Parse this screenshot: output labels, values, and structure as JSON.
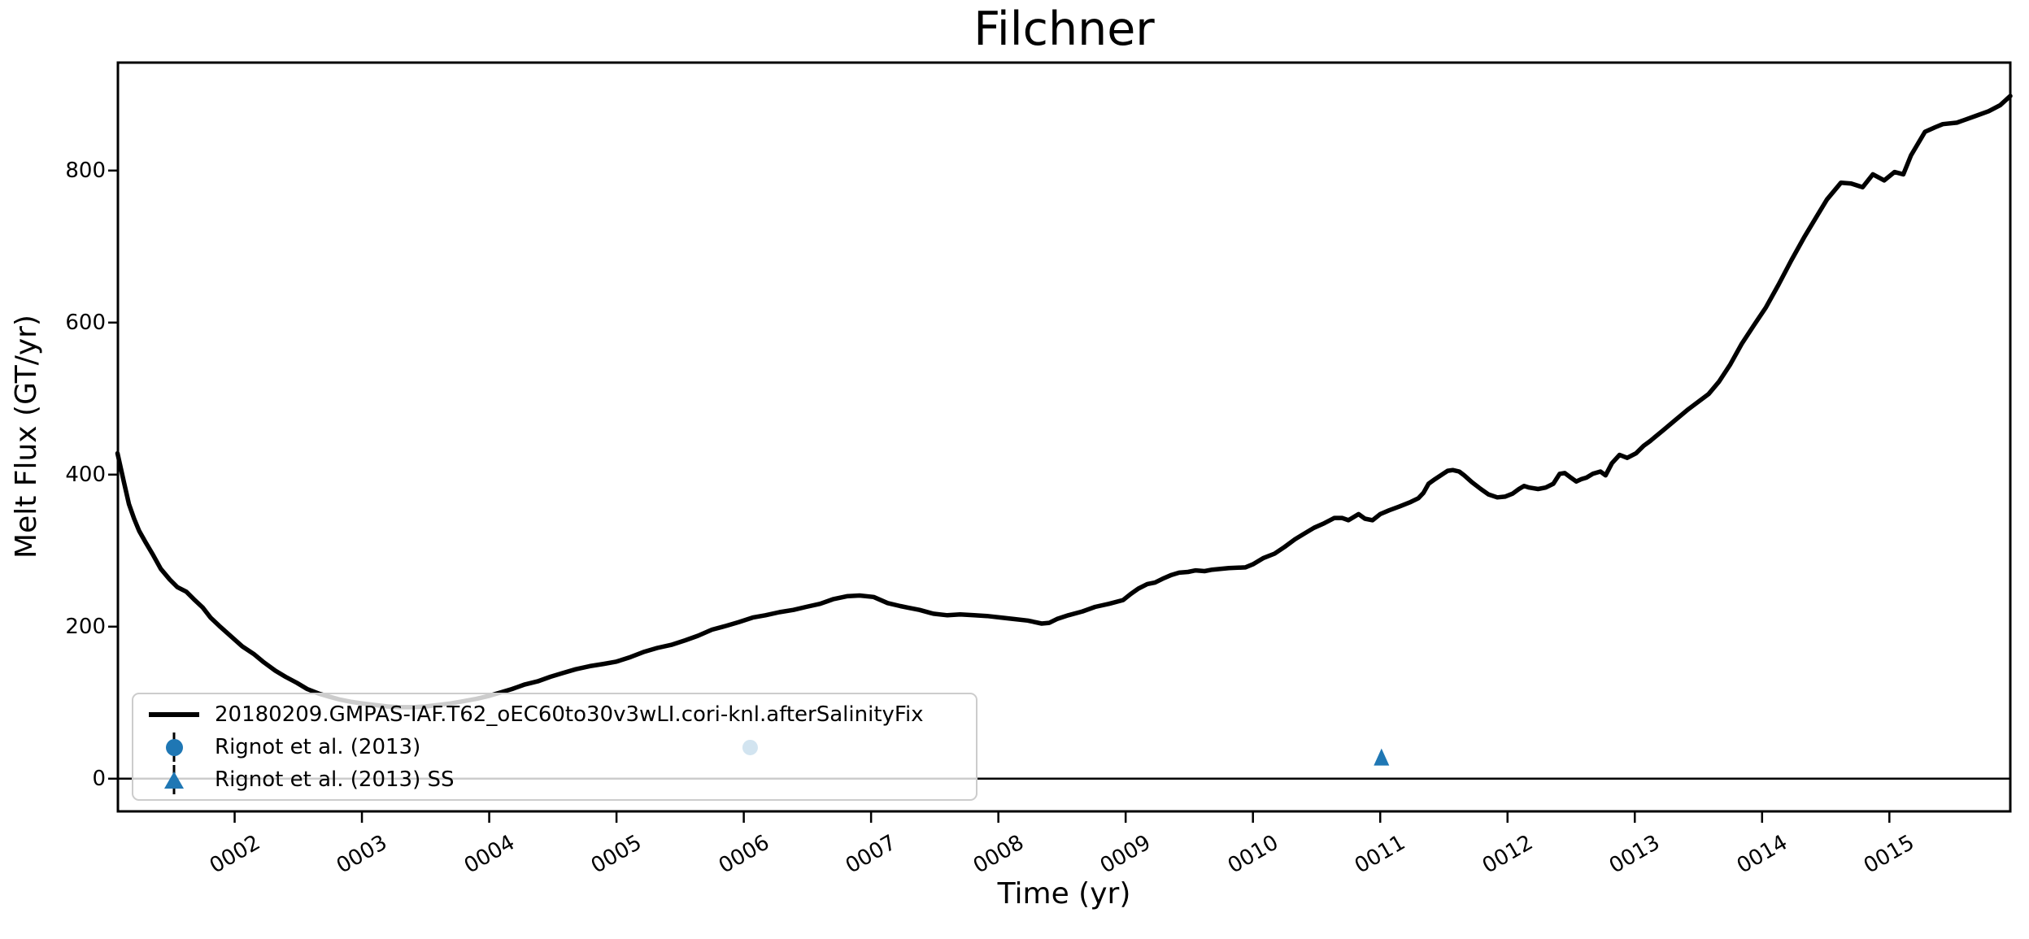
{
  "figure": {
    "title": "Filchner",
    "xlabel": "Time (yr)",
    "ylabel": "Melt Flux (GT/yr)"
  },
  "legend": {
    "entries": [
      {
        "label": "20180209.GMPAS-IAF.T62_oEC60to30v3wLI.cori-knl.afterSalinityFix",
        "marker": "line",
        "color": "#000000"
      },
      {
        "label": "Rignot et al. (2013)",
        "marker": "circle-errorbar",
        "color": "#1f77b4"
      },
      {
        "label": "Rignot et al. (2013) SS",
        "marker": "triangle-errorbar",
        "color": "#1f77b4"
      }
    ]
  },
  "chart_data": {
    "type": "line",
    "title": "Filchner",
    "xlabel": "Time (yr)",
    "ylabel": "Melt Flux (GT/yr)",
    "xlim": [
      1.083,
      15.95
    ],
    "ylim": [
      -43,
      942
    ],
    "grid": false,
    "zero_line": 0,
    "legend_position": "lower left",
    "xticks": {
      "values": [
        2,
        3,
        4,
        5,
        6,
        7,
        8,
        9,
        10,
        11,
        12,
        13,
        14,
        15
      ],
      "labels": [
        "0002",
        "0003",
        "0004",
        "0005",
        "0006",
        "0007",
        "0008",
        "0009",
        "0010",
        "0011",
        "0012",
        "0013",
        "0014",
        "0015"
      ]
    },
    "yticks": {
      "values": [
        0,
        200,
        400,
        600,
        800
      ],
      "labels": [
        "0",
        "200",
        "400",
        "600",
        "800"
      ]
    },
    "series": [
      {
        "name": "20180209.GMPAS-IAF.T62_oEC60to30v3wLI.cori-knl.afterSalinityFix",
        "type": "line",
        "color": "#000000",
        "linewidth": 5.5,
        "points": [
          [
            1.08,
            428
          ],
          [
            1.13,
            390
          ],
          [
            1.17,
            361
          ],
          [
            1.21,
            342
          ],
          [
            1.25,
            326
          ],
          [
            1.3,
            311
          ],
          [
            1.36,
            294
          ],
          [
            1.42,
            276
          ],
          [
            1.49,
            262
          ],
          [
            1.55,
            252
          ],
          [
            1.62,
            246
          ],
          [
            1.68,
            236
          ],
          [
            1.75,
            225
          ],
          [
            1.81,
            212
          ],
          [
            1.88,
            201
          ],
          [
            1.94,
            192
          ],
          [
            2.0,
            183
          ],
          [
            2.06,
            174
          ],
          [
            2.15,
            164
          ],
          [
            2.23,
            153
          ],
          [
            2.32,
            142
          ],
          [
            2.4,
            134
          ],
          [
            2.49,
            126
          ],
          [
            2.57,
            118
          ],
          [
            2.66,
            112
          ],
          [
            2.74,
            108
          ],
          [
            2.83,
            104
          ],
          [
            2.92,
            101
          ],
          [
            3.0,
            99
          ],
          [
            3.1,
            97
          ],
          [
            3.2,
            95
          ],
          [
            3.3,
            94
          ],
          [
            3.4,
            94
          ],
          [
            3.5,
            95
          ],
          [
            3.6,
            97
          ],
          [
            3.7,
            99
          ],
          [
            3.8,
            102
          ],
          [
            3.9,
            105
          ],
          [
            4.0,
            109
          ],
          [
            4.1,
            114
          ],
          [
            4.18,
            118
          ],
          [
            4.28,
            124
          ],
          [
            4.38,
            128
          ],
          [
            4.48,
            134
          ],
          [
            4.58,
            139
          ],
          [
            4.68,
            144
          ],
          [
            4.79,
            148
          ],
          [
            4.9,
            151
          ],
          [
            5.0,
            154
          ],
          [
            5.11,
            160
          ],
          [
            5.22,
            167
          ],
          [
            5.32,
            172
          ],
          [
            5.43,
            176
          ],
          [
            5.54,
            182
          ],
          [
            5.64,
            188
          ],
          [
            5.75,
            196
          ],
          [
            5.86,
            201
          ],
          [
            5.96,
            206
          ],
          [
            6.07,
            212
          ],
          [
            6.17,
            215
          ],
          [
            6.28,
            219
          ],
          [
            6.39,
            222
          ],
          [
            6.49,
            226
          ],
          [
            6.6,
            230
          ],
          [
            6.7,
            236
          ],
          [
            6.81,
            240
          ],
          [
            6.91,
            241
          ],
          [
            7.02,
            239
          ],
          [
            7.13,
            231
          ],
          [
            7.23,
            227
          ],
          [
            7.29,
            225
          ],
          [
            7.38,
            222
          ],
          [
            7.49,
            217
          ],
          [
            7.6,
            215
          ],
          [
            7.7,
            216
          ],
          [
            7.81,
            215
          ],
          [
            7.91,
            214
          ],
          [
            8.02,
            212
          ],
          [
            8.12,
            210
          ],
          [
            8.23,
            208
          ],
          [
            8.34,
            204
          ],
          [
            8.4,
            205
          ],
          [
            8.46,
            210
          ],
          [
            8.55,
            215
          ],
          [
            8.66,
            220
          ],
          [
            8.76,
            226
          ],
          [
            8.87,
            230
          ],
          [
            8.98,
            235
          ],
          [
            9.04,
            243
          ],
          [
            9.1,
            250
          ],
          [
            9.17,
            256
          ],
          [
            9.23,
            258
          ],
          [
            9.29,
            263
          ],
          [
            9.36,
            268
          ],
          [
            9.42,
            271
          ],
          [
            9.49,
            272
          ],
          [
            9.55,
            274
          ],
          [
            9.62,
            273
          ],
          [
            9.68,
            275
          ],
          [
            9.81,
            277
          ],
          [
            9.94,
            278
          ],
          [
            10.0,
            282
          ],
          [
            10.08,
            290
          ],
          [
            10.17,
            296
          ],
          [
            10.25,
            305
          ],
          [
            10.33,
            315
          ],
          [
            10.4,
            322
          ],
          [
            10.48,
            330
          ],
          [
            10.56,
            336
          ],
          [
            10.64,
            343
          ],
          [
            10.7,
            343
          ],
          [
            10.75,
            340
          ],
          [
            10.83,
            348
          ],
          [
            10.88,
            342
          ],
          [
            10.94,
            340
          ],
          [
            11.0,
            348
          ],
          [
            11.07,
            353
          ],
          [
            11.15,
            358
          ],
          [
            11.24,
            364
          ],
          [
            11.3,
            369
          ],
          [
            11.34,
            376
          ],
          [
            11.38,
            388
          ],
          [
            11.43,
            394
          ],
          [
            11.53,
            405
          ],
          [
            11.57,
            406
          ],
          [
            11.62,
            404
          ],
          [
            11.66,
            399
          ],
          [
            11.72,
            390
          ],
          [
            11.79,
            381
          ],
          [
            11.85,
            374
          ],
          [
            11.92,
            370
          ],
          [
            11.98,
            371
          ],
          [
            12.04,
            375
          ],
          [
            12.09,
            381
          ],
          [
            12.13,
            385
          ],
          [
            12.17,
            383
          ],
          [
            12.24,
            381
          ],
          [
            12.3,
            383
          ],
          [
            12.36,
            388
          ],
          [
            12.41,
            401
          ],
          [
            12.45,
            402
          ],
          [
            12.49,
            397
          ],
          [
            12.54,
            391
          ],
          [
            12.58,
            394
          ],
          [
            12.62,
            396
          ],
          [
            12.67,
            401
          ],
          [
            12.73,
            404
          ],
          [
            12.77,
            399
          ],
          [
            12.82,
            415
          ],
          [
            12.88,
            426
          ],
          [
            12.94,
            422
          ],
          [
            13.01,
            428
          ],
          [
            13.07,
            438
          ],
          [
            13.12,
            444
          ],
          [
            13.22,
            458
          ],
          [
            13.32,
            472
          ],
          [
            13.42,
            486
          ],
          [
            13.58,
            506
          ],
          [
            13.66,
            522
          ],
          [
            13.75,
            545
          ],
          [
            13.84,
            572
          ],
          [
            13.93,
            595
          ],
          [
            14.03,
            620
          ],
          [
            14.13,
            650
          ],
          [
            14.23,
            682
          ],
          [
            14.33,
            712
          ],
          [
            14.43,
            740
          ],
          [
            14.51,
            762
          ],
          [
            14.62,
            784
          ],
          [
            14.7,
            783
          ],
          [
            14.79,
            778
          ],
          [
            14.87,
            795
          ],
          [
            14.96,
            787
          ],
          [
            15.04,
            798
          ],
          [
            15.11,
            795
          ],
          [
            15.17,
            820
          ],
          [
            15.28,
            851
          ],
          [
            15.36,
            857
          ],
          [
            15.42,
            861
          ],
          [
            15.53,
            863
          ],
          [
            15.68,
            872
          ],
          [
            15.78,
            878
          ],
          [
            15.87,
            886
          ],
          [
            15.95,
            898
          ]
        ]
      },
      {
        "name": "Rignot et al. (2013)",
        "type": "scatter",
        "marker": "circle",
        "color": "#1f77b4",
        "points": [
          [
            6.05,
            41
          ]
        ]
      },
      {
        "name": "Rignot et al. (2013) SS",
        "type": "scatter",
        "marker": "triangle",
        "color": "#1f77b4",
        "points": [
          [
            11.01,
            28
          ]
        ]
      }
    ]
  }
}
